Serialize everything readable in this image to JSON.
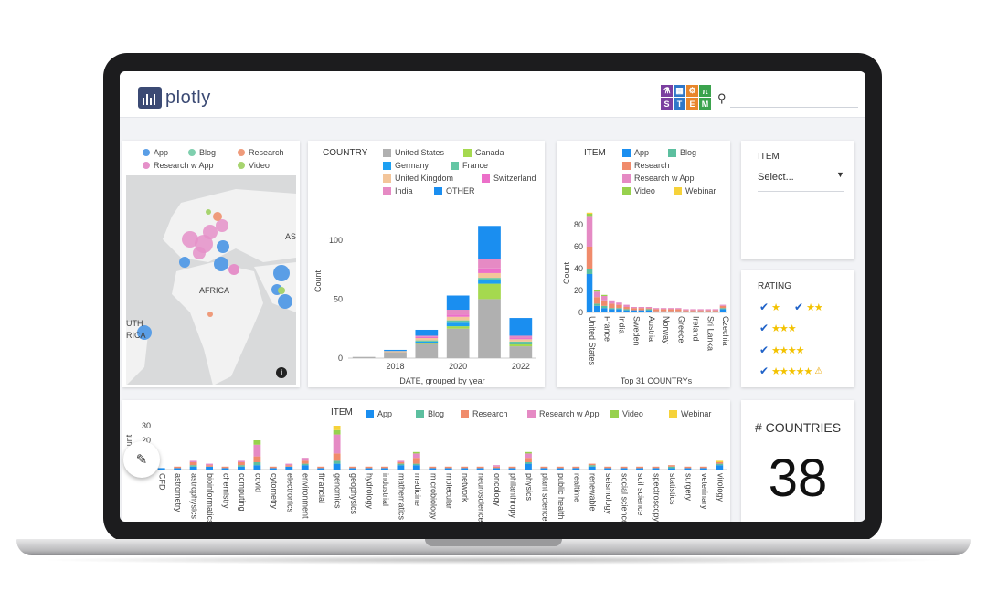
{
  "brand": {
    "name": "plotly",
    "stem_letters": [
      "⚗",
      "▦",
      "⚙",
      "π",
      "S",
      "T",
      "E",
      "M"
    ],
    "stem_colors": [
      "#7b3fa0",
      "#2f77c9",
      "#e8862b",
      "#3ba34d",
      "#7b3fa0",
      "#2f77c9",
      "#e8862b",
      "#3ba34d"
    ]
  },
  "search": {
    "icon": "search-icon"
  },
  "map_card": {
    "legend": [
      {
        "label": "App",
        "color": "#5a9ee6"
      },
      {
        "label": "Blog",
        "color": "#7fcfae"
      },
      {
        "label": "Research",
        "color": "#ef9b7b"
      },
      {
        "label": "Research w App",
        "color": "#e590c9"
      },
      {
        "label": "Video",
        "color": "#a7d46f"
      }
    ],
    "labels": {
      "africa": "AFRICA",
      "asia": "AS",
      "south": "UTH",
      "rica": "RICA"
    },
    "info_icon": "info-icon"
  },
  "country_card": {
    "legend_title": "COUNTRY",
    "legend": [
      {
        "label": "United States",
        "color": "#b0b0b0"
      },
      {
        "label": "Canada",
        "color": "#a5d94f"
      },
      {
        "label": "Germany",
        "color": "#1da0f2"
      },
      {
        "label": "France",
        "color": "#64c6a4"
      },
      {
        "label": "United Kingdom",
        "color": "#f3c59a"
      },
      {
        "label": "Switzerland",
        "color": "#ec6fc9"
      },
      {
        "label": "India",
        "color": "#e68ac4"
      },
      {
        "label": "OTHER",
        "color": "#1a8ef0"
      }
    ],
    "xlabel": "DATE, grouped by year",
    "ylabel": "Count"
  },
  "item_card": {
    "legend_title": "ITEM",
    "legend": [
      {
        "label": "App",
        "color": "#1a8ef0"
      },
      {
        "label": "Blog",
        "color": "#5cbf9f"
      },
      {
        "label": "Research",
        "color": "#f08b6b"
      },
      {
        "label": "Research w App",
        "color": "#e58ac4"
      },
      {
        "label": "Video",
        "color": "#97d14d"
      },
      {
        "label": "Webinar",
        "color": "#f6d23a"
      }
    ],
    "xlabel": "Top 31 COUNTRYs",
    "ylabel": "Count"
  },
  "filter_card": {
    "label": "ITEM",
    "placeholder": "Select..."
  },
  "rating_card": {
    "title": "RATING",
    "rows": [
      "★",
      "★★",
      "★★★",
      "★★★★",
      "★★★★★"
    ],
    "warn_icon": "⚠"
  },
  "count_card": {
    "title": "# COUNTRIES",
    "value": "38"
  },
  "field_card": {
    "legend_title": "ITEM",
    "legend": [
      {
        "label": "App",
        "color": "#1a8ef0"
      },
      {
        "label": "Blog",
        "color": "#5cbf9f"
      },
      {
        "label": "Research",
        "color": "#f08b6b"
      },
      {
        "label": "Research w App",
        "color": "#e58ac4"
      },
      {
        "label": "Video",
        "color": "#97d14d"
      },
      {
        "label": "Webinar",
        "color": "#f6d23a"
      }
    ],
    "ylabel": "unt"
  },
  "edit_button": {
    "icon": "pencil-icon"
  },
  "chart_data": [
    {
      "type": "bar",
      "title": "",
      "xlabel": "DATE, grouped by year",
      "ylabel": "Count",
      "x": [
        2017,
        2018,
        2019,
        2020,
        2021,
        2022
      ],
      "x_tick_labels": [
        "2018",
        "2020",
        "2022"
      ],
      "y_ticks": [
        0,
        50,
        100
      ],
      "ylim": [
        0,
        130
      ],
      "series": [
        {
          "name": "United States",
          "values": [
            1,
            5,
            12,
            25,
            50,
            10
          ]
        },
        {
          "name": "Canada",
          "values": [
            0,
            0,
            1,
            2,
            13,
            2
          ]
        },
        {
          "name": "Germany",
          "values": [
            0,
            0,
            1,
            3,
            3,
            1
          ]
        },
        {
          "name": "France",
          "values": [
            0,
            0,
            1,
            2,
            2,
            1
          ]
        },
        {
          "name": "United Kingdom",
          "values": [
            0,
            1,
            2,
            3,
            4,
            2
          ]
        },
        {
          "name": "Switzerland",
          "values": [
            0,
            0,
            1,
            2,
            4,
            1
          ]
        },
        {
          "name": "India",
          "values": [
            0,
            0,
            1,
            4,
            8,
            2
          ]
        },
        {
          "name": "OTHER",
          "values": [
            0,
            1,
            5,
            12,
            28,
            15
          ]
        }
      ]
    },
    {
      "type": "bar",
      "title": "",
      "xlabel": "Top 31 COUNTRYs",
      "ylabel": "Count",
      "categories": [
        "United States",
        "",
        "France",
        "",
        "India",
        "",
        "Sweden",
        "",
        "Austria",
        "",
        "Norway",
        "",
        "Greece",
        "",
        "Ireland",
        "",
        "Sri Lanka",
        "",
        "Czechia"
      ],
      "y_ticks": [
        0,
        20,
        40,
        60,
        80
      ],
      "ylim": [
        0,
        95
      ],
      "series": [
        {
          "name": "App",
          "values": [
            35,
            6,
            4,
            3,
            3,
            2,
            2,
            2,
            2,
            1,
            1,
            1,
            1,
            1,
            1,
            1,
            1,
            1,
            3
          ]
        },
        {
          "name": "Blog",
          "values": [
            5,
            2,
            2,
            1,
            1,
            1,
            0,
            0,
            1,
            0,
            0,
            0,
            0,
            0,
            0,
            0,
            0,
            0,
            1
          ]
        },
        {
          "name": "Research",
          "values": [
            20,
            6,
            5,
            4,
            3,
            2,
            2,
            2,
            1,
            2,
            2,
            2,
            2,
            1,
            1,
            1,
            1,
            1,
            2
          ]
        },
        {
          "name": "Research w App",
          "values": [
            28,
            5,
            4,
            3,
            2,
            2,
            1,
            1,
            1,
            1,
            1,
            1,
            1,
            1,
            1,
            1,
            1,
            1,
            1
          ]
        },
        {
          "name": "Video",
          "values": [
            2,
            1,
            1,
            0,
            0,
            0,
            0,
            0,
            0,
            0,
            0,
            0,
            0,
            0,
            0,
            0,
            0,
            0,
            0
          ]
        },
        {
          "name": "Webinar",
          "values": [
            1,
            0,
            0,
            0,
            0,
            0,
            0,
            0,
            0,
            0,
            0,
            0,
            0,
            0,
            0,
            0,
            0,
            0,
            0
          ]
        }
      ]
    },
    {
      "type": "bar",
      "title": "",
      "xlabel": "",
      "ylabel": "unt",
      "categories": [
        "CFD",
        "astrometry",
        "astrophysics",
        "bioinformatics",
        "chemistry",
        "computing",
        "covid",
        "cytometry",
        "electronics",
        "environment",
        "financial",
        "genomics",
        "geophysics",
        "hydrology",
        "industrial",
        "mathematics",
        "medicine",
        "microbiology",
        "molecular",
        "network",
        "neuroscience",
        "oncology",
        "philanthropy",
        "physics",
        "plant science",
        "public health",
        "realtime",
        "renewable",
        "seismology",
        "social science",
        "soil science",
        "spectroscopy",
        "statistics",
        "surgery",
        "veterinary",
        "virology"
      ],
      "y_ticks": [
        20,
        30
      ],
      "ylim": [
        0,
        30
      ],
      "series": [
        {
          "name": "App",
          "values": [
            1,
            1,
            2,
            2,
            1,
            2,
            3,
            1,
            2,
            3,
            1,
            4,
            1,
            1,
            1,
            3,
            3,
            1,
            1,
            1,
            1,
            1,
            1,
            4,
            1,
            1,
            1,
            2,
            1,
            1,
            1,
            1,
            1,
            1,
            1,
            3
          ]
        },
        {
          "name": "Blog",
          "values": [
            0,
            0,
            1,
            0,
            0,
            1,
            2,
            0,
            0,
            1,
            0,
            2,
            0,
            0,
            0,
            1,
            1,
            0,
            0,
            0,
            0,
            0,
            0,
            1,
            0,
            0,
            0,
            1,
            0,
            0,
            0,
            0,
            1,
            0,
            0,
            1
          ]
        },
        {
          "name": "Research",
          "values": [
            0,
            1,
            2,
            1,
            1,
            2,
            4,
            1,
            1,
            2,
            1,
            5,
            1,
            1,
            1,
            1,
            4,
            1,
            1,
            1,
            1,
            1,
            1,
            3,
            1,
            1,
            1,
            1,
            1,
            1,
            1,
            1,
            1,
            1,
            1,
            1
          ]
        },
        {
          "name": "Research w App",
          "values": [
            0,
            0,
            1,
            1,
            0,
            1,
            8,
            0,
            1,
            2,
            0,
            13,
            0,
            0,
            0,
            1,
            3,
            0,
            0,
            0,
            0,
            1,
            0,
            3,
            0,
            0,
            0,
            0,
            0,
            0,
            0,
            0,
            0,
            0,
            0,
            0
          ]
        },
        {
          "name": "Video",
          "values": [
            0,
            0,
            0,
            0,
            0,
            0,
            3,
            0,
            0,
            0,
            0,
            3,
            0,
            0,
            0,
            0,
            1,
            0,
            0,
            0,
            0,
            0,
            0,
            1,
            0,
            0,
            0,
            0,
            0,
            0,
            0,
            0,
            0,
            0,
            0,
            0
          ]
        },
        {
          "name": "Webinar",
          "values": [
            0,
            0,
            0,
            0,
            0,
            0,
            0,
            0,
            0,
            0,
            0,
            3,
            0,
            0,
            0,
            0,
            0,
            0,
            0,
            0,
            0,
            0,
            0,
            0,
            0,
            0,
            0,
            0,
            0,
            0,
            0,
            0,
            0,
            0,
            0,
            1
          ]
        }
      ]
    }
  ]
}
